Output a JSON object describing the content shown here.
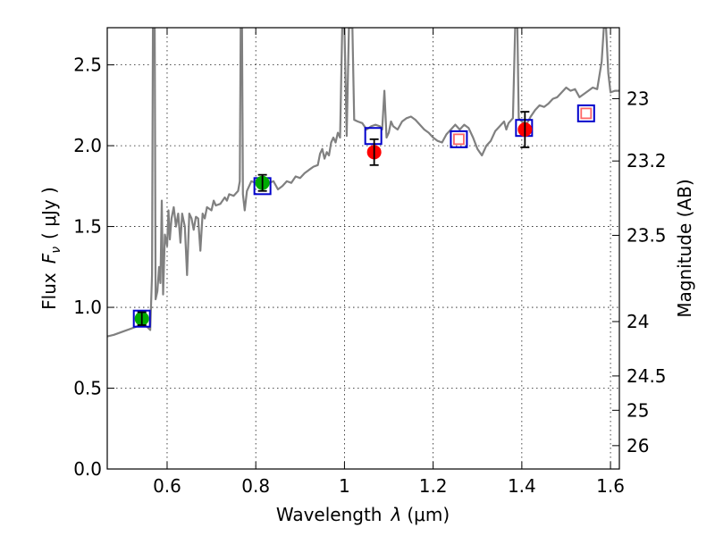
{
  "chart_data": {
    "type": "scatter",
    "title": "",
    "xlabel_text": "Wavelength",
    "xlabel_symbol": "λ",
    "xlabel_unit": "(μm)",
    "ylabel_text": "Flux",
    "ylabel_symbol": "F",
    "ylabel_subscript": "ν",
    "ylabel_unit": "( μJy )",
    "y2label": "Magnitude (AB)",
    "xlim": [
      0.465,
      1.62
    ],
    "ylim": [
      0.0,
      2.73
    ],
    "grid": true,
    "x_ticks": [
      0.6,
      0.8,
      1.0,
      1.2,
      1.4,
      1.6
    ],
    "x_tick_labels": [
      "0.6",
      "0.8",
      "1",
      "1.2",
      "1.4",
      "1.6"
    ],
    "y_ticks": [
      0.0,
      0.5,
      1.0,
      1.5,
      2.0,
      2.5
    ],
    "y_tick_labels": [
      "0.0",
      "0.5",
      "1.0",
      "1.5",
      "2.0",
      "2.5"
    ],
    "mag_ticks": [
      23,
      23.2,
      23.5,
      24,
      24.5,
      25,
      26
    ],
    "mag_tick_labels": [
      "23",
      "23.2",
      "23.5",
      "24",
      "24.5",
      "25",
      "26"
    ],
    "colors": {
      "spectrum": "#808080",
      "model_box": "#0000cc",
      "upper_box": "#ff6666",
      "detected_green": "#00aa00",
      "detected_red": "#ff0000",
      "errorbar": "#000000"
    },
    "spectrum": [
      [
        0.465,
        0.82
      ],
      [
        0.48,
        0.83
      ],
      [
        0.5,
        0.85
      ],
      [
        0.52,
        0.87
      ],
      [
        0.54,
        0.89
      ],
      [
        0.555,
        0.88
      ],
      [
        0.562,
        0.86
      ],
      [
        0.566,
        1.2
      ],
      [
        0.568,
        2.73
      ],
      [
        0.572,
        2.73
      ],
      [
        0.574,
        1.05
      ],
      [
        0.578,
        1.1
      ],
      [
        0.582,
        1.25
      ],
      [
        0.585,
        1.15
      ],
      [
        0.588,
        1.66
      ],
      [
        0.591,
        1.08
      ],
      [
        0.595,
        1.45
      ],
      [
        0.6,
        1.38
      ],
      [
        0.603,
        1.6
      ],
      [
        0.606,
        1.42
      ],
      [
        0.61,
        1.55
      ],
      [
        0.615,
        1.62
      ],
      [
        0.62,
        1.5
      ],
      [
        0.625,
        1.58
      ],
      [
        0.63,
        1.4
      ],
      [
        0.634,
        1.58
      ],
      [
        0.64,
        1.5
      ],
      [
        0.645,
        1.2
      ],
      [
        0.65,
        1.58
      ],
      [
        0.655,
        1.55
      ],
      [
        0.66,
        1.48
      ],
      [
        0.665,
        1.56
      ],
      [
        0.67,
        1.55
      ],
      [
        0.675,
        1.35
      ],
      [
        0.68,
        1.58
      ],
      [
        0.685,
        1.55
      ],
      [
        0.69,
        1.62
      ],
      [
        0.7,
        1.6
      ],
      [
        0.705,
        1.66
      ],
      [
        0.71,
        1.63
      ],
      [
        0.72,
        1.64
      ],
      [
        0.73,
        1.68
      ],
      [
        0.735,
        1.66
      ],
      [
        0.74,
        1.7
      ],
      [
        0.75,
        1.69
      ],
      [
        0.76,
        1.72
      ],
      [
        0.764,
        1.78
      ],
      [
        0.766,
        2.73
      ],
      [
        0.769,
        2.73
      ],
      [
        0.771,
        1.7
      ],
      [
        0.775,
        1.6
      ],
      [
        0.78,
        1.72
      ],
      [
        0.79,
        1.78
      ],
      [
        0.8,
        1.77
      ],
      [
        0.81,
        1.75
      ],
      [
        0.82,
        1.78
      ],
      [
        0.83,
        1.77
      ],
      [
        0.84,
        1.78
      ],
      [
        0.85,
        1.73
      ],
      [
        0.86,
        1.75
      ],
      [
        0.87,
        1.78
      ],
      [
        0.88,
        1.77
      ],
      [
        0.89,
        1.81
      ],
      [
        0.9,
        1.8
      ],
      [
        0.91,
        1.83
      ],
      [
        0.92,
        1.85
      ],
      [
        0.93,
        1.87
      ],
      [
        0.94,
        1.88
      ],
      [
        0.945,
        1.95
      ],
      [
        0.95,
        1.98
      ],
      [
        0.955,
        1.92
      ],
      [
        0.96,
        1.96
      ],
      [
        0.965,
        1.94
      ],
      [
        0.97,
        2.02
      ],
      [
        0.975,
        2.05
      ],
      [
        0.98,
        2.02
      ],
      [
        0.985,
        2.08
      ],
      [
        0.99,
        2.05
      ],
      [
        0.995,
        2.73
      ],
      [
        1.0,
        2.73
      ],
      [
        1.005,
        2.06
      ],
      [
        1.01,
        2.73
      ],
      [
        1.018,
        2.73
      ],
      [
        1.022,
        2.16
      ],
      [
        1.03,
        2.15
      ],
      [
        1.04,
        2.14
      ],
      [
        1.05,
        2.1
      ],
      [
        1.06,
        2.12
      ],
      [
        1.07,
        2.13
      ],
      [
        1.08,
        2.12
      ],
      [
        1.085,
        2.1
      ],
      [
        1.09,
        2.34
      ],
      [
        1.095,
        2.05
      ],
      [
        1.1,
        2.08
      ],
      [
        1.105,
        2.15
      ],
      [
        1.11,
        2.12
      ],
      [
        1.12,
        2.1
      ],
      [
        1.13,
        2.15
      ],
      [
        1.14,
        2.17
      ],
      [
        1.15,
        2.18
      ],
      [
        1.16,
        2.16
      ],
      [
        1.17,
        2.13
      ],
      [
        1.18,
        2.1
      ],
      [
        1.19,
        2.08
      ],
      [
        1.2,
        2.05
      ],
      [
        1.21,
        2.03
      ],
      [
        1.22,
        2.02
      ],
      [
        1.23,
        2.07
      ],
      [
        1.24,
        2.1
      ],
      [
        1.25,
        2.13
      ],
      [
        1.26,
        2.1
      ],
      [
        1.27,
        2.13
      ],
      [
        1.28,
        2.11
      ],
      [
        1.29,
        2.05
      ],
      [
        1.3,
        1.98
      ],
      [
        1.31,
        1.94
      ],
      [
        1.32,
        2.0
      ],
      [
        1.33,
        2.03
      ],
      [
        1.34,
        2.09
      ],
      [
        1.35,
        2.12
      ],
      [
        1.36,
        2.15
      ],
      [
        1.365,
        2.1
      ],
      [
        1.37,
        2.14
      ],
      [
        1.38,
        2.17
      ],
      [
        1.385,
        2.73
      ],
      [
        1.39,
        2.73
      ],
      [
        1.393,
        2.17
      ],
      [
        1.4,
        2.15
      ],
      [
        1.41,
        2.13
      ],
      [
        1.42,
        2.18
      ],
      [
        1.43,
        2.22
      ],
      [
        1.44,
        2.25
      ],
      [
        1.45,
        2.24
      ],
      [
        1.46,
        2.26
      ],
      [
        1.47,
        2.29
      ],
      [
        1.48,
        2.3
      ],
      [
        1.49,
        2.33
      ],
      [
        1.5,
        2.36
      ],
      [
        1.51,
        2.34
      ],
      [
        1.52,
        2.35
      ],
      [
        1.53,
        2.3
      ],
      [
        1.54,
        2.32
      ],
      [
        1.55,
        2.34
      ],
      [
        1.56,
        2.36
      ],
      [
        1.57,
        2.35
      ],
      [
        1.58,
        2.52
      ],
      [
        1.585,
        2.73
      ],
      [
        1.59,
        2.73
      ],
      [
        1.595,
        2.45
      ],
      [
        1.6,
        2.33
      ],
      [
        1.61,
        2.34
      ],
      [
        1.62,
        2.34
      ]
    ],
    "model_boxes": [
      {
        "x": 0.543,
        "y": 0.93
      },
      {
        "x": 0.815,
        "y": 1.75
      },
      {
        "x": 1.065,
        "y": 2.06
      },
      {
        "x": 1.258,
        "y": 2.04
      },
      {
        "x": 1.405,
        "y": 2.11
      },
      {
        "x": 1.545,
        "y": 2.2
      }
    ],
    "upper_limits": [
      {
        "x": 1.258,
        "y": 2.04
      },
      {
        "x": 1.545,
        "y": 2.2
      }
    ],
    "detections": [
      {
        "x": 0.543,
        "y": 0.93,
        "yerr": 0.04,
        "color": "green"
      },
      {
        "x": 0.815,
        "y": 1.77,
        "yerr": 0.05,
        "color": "green"
      },
      {
        "x": 1.067,
        "y": 1.96,
        "yerr": 0.08,
        "color": "red"
      },
      {
        "x": 1.407,
        "y": 2.1,
        "yerr": 0.11,
        "color": "red"
      }
    ]
  }
}
